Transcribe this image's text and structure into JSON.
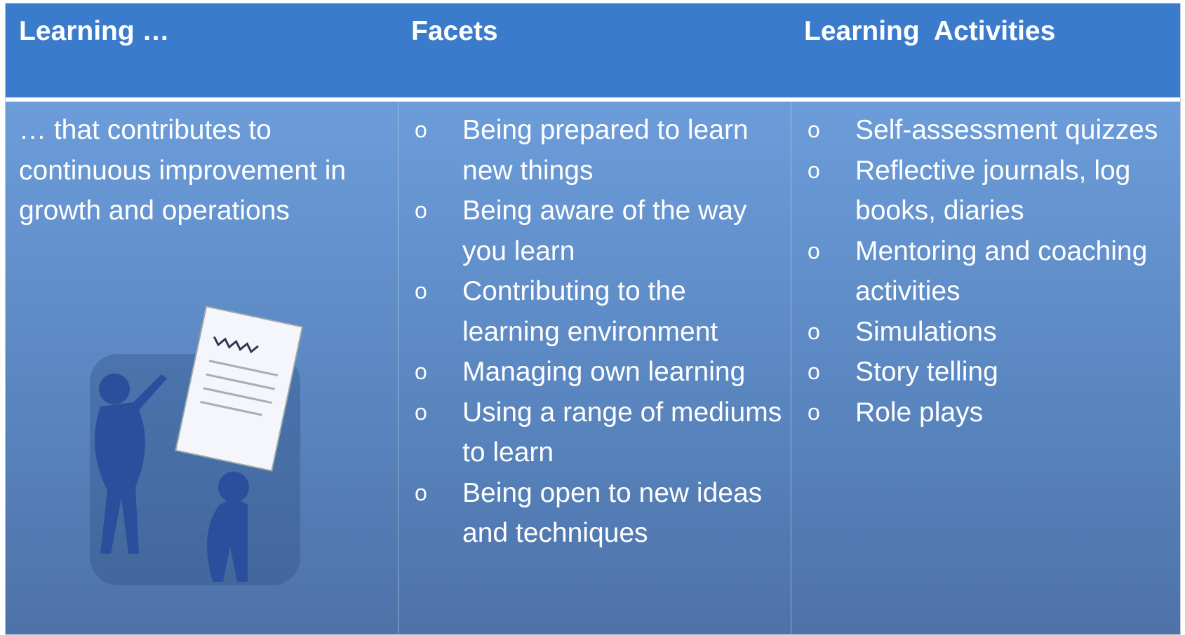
{
  "header": {
    "columns": [
      "Learning …",
      "Facets",
      "Learning  Activities"
    ]
  },
  "body": {
    "description": "… that contributes to continuous improvement in growth and operations",
    "facets": [
      "Being prepared to learn new things",
      "Being aware of the way you learn",
      "Contributing to the learning environment",
      "Managing own learning",
      "Using a range of mediums to learn",
      "Being open to new ideas and techniques"
    ],
    "activities": [
      "Self-assessment quizzes",
      "Reflective journals, log books, diaries",
      "Mentoring and coaching activities",
      "Simulations",
      "Story telling",
      "Role plays"
    ]
  }
}
